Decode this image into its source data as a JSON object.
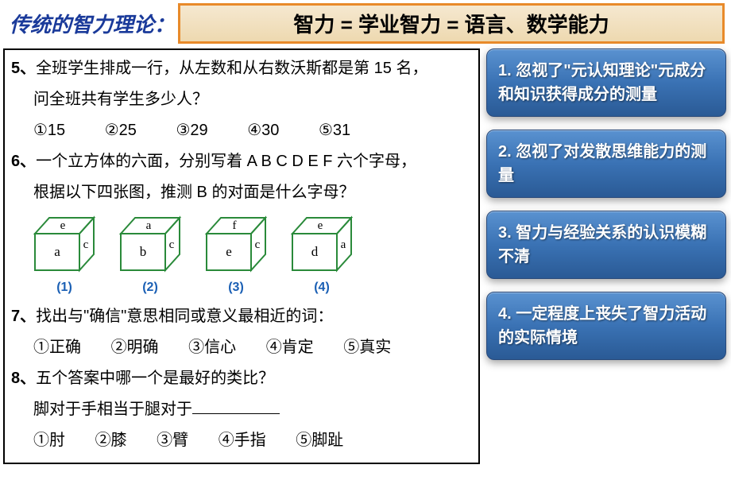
{
  "header": {
    "title_left": "传统的智力理论：",
    "title_box": "智力 = 学业智力 = 语言、数学能力"
  },
  "colors": {
    "title_left": "#1a3a9a",
    "title_box_border": "#e88a2a",
    "title_box_bg_top": "#f5e8d0",
    "title_box_bg_bottom": "#eed9b0",
    "bullet_bg_top": "#5a92d0",
    "bullet_bg_bottom": "#2a5a95",
    "bullet_text": "#ffffff",
    "cube_stroke": "#2a8a3a",
    "cube_label": "#1a5fb4",
    "panel_border": "#000000"
  },
  "questions": {
    "q5": {
      "num": "5、",
      "line1": "全班学生排成一行，从左数和从右数沃斯都是第 15 名，",
      "line2": "问全班共有学生多少人？",
      "opts": {
        "o1": "①15",
        "o2": "②25",
        "o3": "③29",
        "o4": "④30",
        "o5": "⑤31"
      }
    },
    "q6": {
      "num": "6、",
      "line1": "一个立方体的六面，分别写着 A B C D E F 六个字母，",
      "line2": "根据以下四张图，推测 B 的对面是什么字母？"
    },
    "q7": {
      "num": "7、",
      "line1": "找出与\"确信\"意思相同或意义最相近的词：",
      "opts": {
        "o1": "①正确",
        "o2": "②明确",
        "o3": "③信心",
        "o4": "④肯定",
        "o5": "⑤真实"
      }
    },
    "q8": {
      "num": "8、",
      "line1": "五个答案中哪一个是最好的类比？",
      "line2a": "脚对于手相当于腿对于",
      "opts": {
        "o1": "①肘",
        "o2": "②膝",
        "o3": "③臂",
        "o4": "④手指",
        "o5": "⑤脚趾"
      }
    }
  },
  "cubes": [
    {
      "top": "e",
      "front": "a",
      "right": "c",
      "label": "(1)"
    },
    {
      "top": "a",
      "front": "b",
      "right": "c",
      "label": "(2)"
    },
    {
      "top": "f",
      "front": "e",
      "right": "c",
      "label": "(3)"
    },
    {
      "top": "e",
      "front": "d",
      "right": "a",
      "label": "(4)"
    }
  ],
  "cube_style": {
    "stroke": "#2a8a3a",
    "stroke_width": 2,
    "font_size": 15,
    "font_family": "Times New Roman, serif"
  },
  "bullets": {
    "b1": "1. 忽视了\"元认知理论\"元成分和知识获得成分的测量",
    "b2": "2. 忽视了对发散思维能力的测量",
    "b3": "3. 智力与经验关系的认识模糊不清",
    "b4": "4. 一定程度上丧失了智力活动的实际情境"
  }
}
